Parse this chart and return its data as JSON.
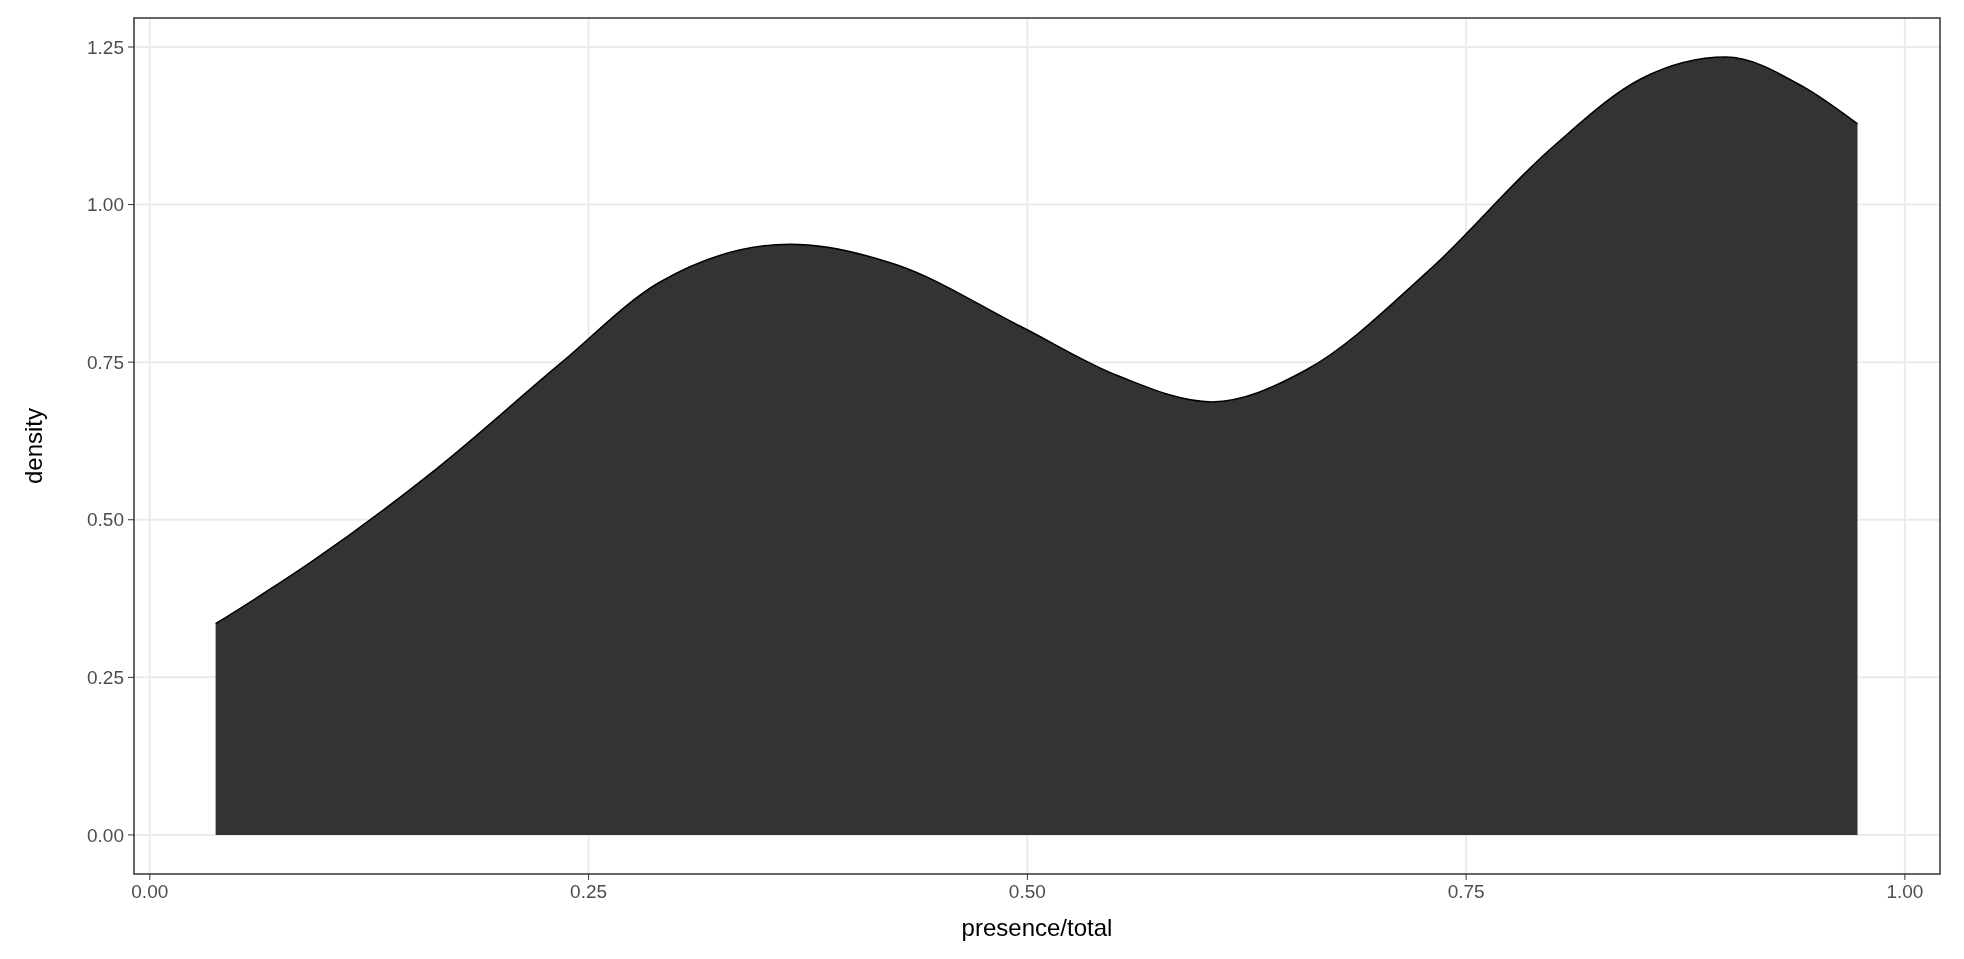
{
  "chart_data": {
    "type": "area",
    "xlabel": "presence/total",
    "ylabel": "density",
    "x": [
      0.0375,
      0.092,
      0.163,
      0.234,
      0.29,
      0.365,
      0.425,
      0.496,
      0.552,
      0.605,
      0.659,
      0.729,
      0.8,
      0.85,
      0.898,
      0.942,
      0.973
    ],
    "series": [
      {
        "color": "#333333",
        "values": [
          0.335,
          0.433,
          0.58,
          0.748,
          0.876,
          0.937,
          0.905,
          0.807,
          0.728,
          0.687,
          0.738,
          0.896,
          1.093,
          1.2,
          1.234,
          1.187,
          1.128
        ]
      }
    ],
    "xlim": [
      -0.009,
      1.02
    ],
    "ylim": [
      -0.062,
      1.296
    ],
    "xticks": [
      {
        "value": 0,
        "label": "0.00"
      },
      {
        "value": 0.25,
        "label": "0.25"
      },
      {
        "value": 0.5,
        "label": "0.50"
      },
      {
        "value": 0.75,
        "label": "0.75"
      },
      {
        "value": 1,
        "label": "1.00"
      }
    ],
    "yticks": [
      {
        "value": 0,
        "label": "0.00"
      },
      {
        "value": 0.25,
        "label": "0.25"
      },
      {
        "value": 0.5,
        "label": "0.50"
      },
      {
        "value": 0.75,
        "label": "0.75"
      },
      {
        "value": 1,
        "label": "1.00"
      },
      {
        "value": 1.25,
        "label": "1.25"
      }
    ],
    "grid": true
  }
}
